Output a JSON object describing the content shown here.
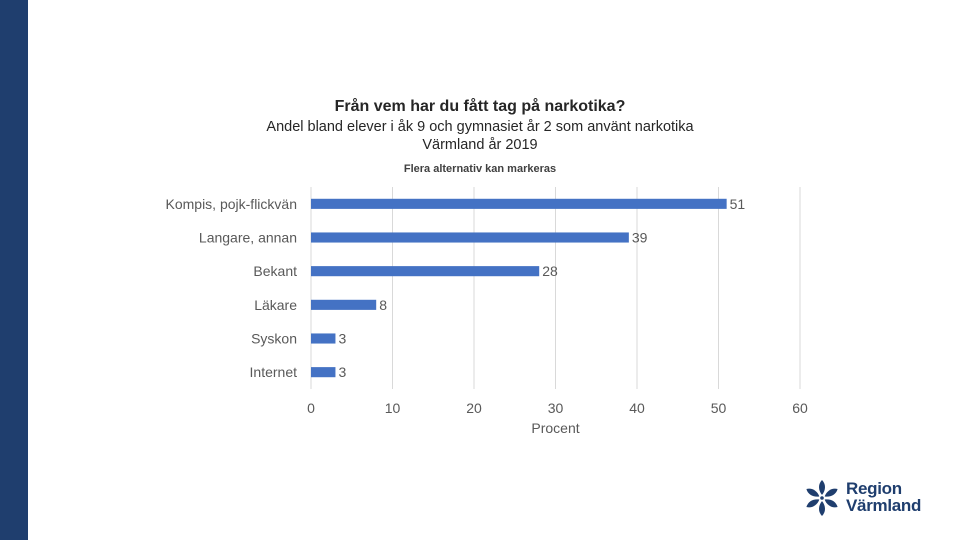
{
  "colors": {
    "band": "#1f3e6e",
    "bar": "#4472c4",
    "grid": "#d9d9d9",
    "text": "#595959"
  },
  "header": {
    "title": "Från vem har du fått tag på narkotika?",
    "subtitle_line1": "Andel bland elever i åk 9 och gymnasiet år 2 som använt narkotika",
    "subtitle_line2": "Värmland år 2019",
    "note": "Flera alternativ kan markeras"
  },
  "logo": {
    "line1": "Region",
    "line2": "Värmland",
    "icon": "snowflake-flower-icon"
  },
  "chart_data": {
    "type": "bar",
    "orientation": "horizontal",
    "title": "Från vem har du fått tag på narkotika?",
    "categories": [
      "Kompis, pojk-flickvän",
      "Langare, annan",
      "Bekant",
      "Läkare",
      "Syskon",
      "Internet"
    ],
    "values": [
      51,
      39,
      28,
      8,
      3,
      3
    ],
    "xlabel": "Procent",
    "ylabel": "",
    "xlim": [
      0,
      60
    ],
    "xticks": [
      0,
      10,
      20,
      30,
      40,
      50,
      60
    ],
    "grid": true,
    "data_labels": true
  }
}
